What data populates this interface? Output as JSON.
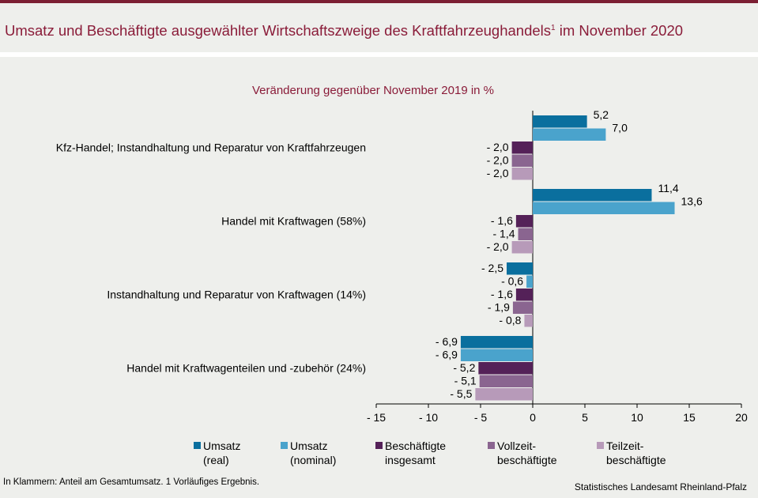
{
  "header": {
    "title": "Umsatz und Beschäftigte ausgewählter Wirtschaftszweige des Kraftfahrzeughandels",
    "title_sup": "1",
    "title_suffix": " im November 2020"
  },
  "chart_data": {
    "type": "bar",
    "orientation": "horizontal",
    "title": "Veränderung gegenüber November 2019 in %",
    "categories": [
      "Kfz-Handel; Instandhaltung und Reparatur von Kraftfahrzeugen",
      "Handel mit Kraftwagen (58%)",
      "Instandhaltung und Reparatur von Kraftwagen (14%)",
      "Handel mit Kraftwagenteilen und -zubehör (24%)"
    ],
    "series": [
      {
        "name": "Umsatz (real)",
        "legend_lines": [
          "Umsatz",
          "(real)"
        ],
        "color": "#0a6f9e",
        "values": [
          5.2,
          11.4,
          -2.5,
          -6.9
        ],
        "labels": [
          "5,2",
          "11,4",
          "- 2,5",
          "- 6,9"
        ]
      },
      {
        "name": "Umsatz (nominal)",
        "legend_lines": [
          "Umsatz",
          "(nominal)"
        ],
        "color": "#4aa3cc",
        "values": [
          7.0,
          13.6,
          -0.6,
          -6.9
        ],
        "labels": [
          "7,0",
          "13,6",
          "- 0,6",
          "- 6,9"
        ]
      },
      {
        "name": "Beschäftigte insgesamt",
        "legend_lines": [
          "Beschäftigte",
          "insgesamt"
        ],
        "color": "#542158",
        "values": [
          -2.0,
          -1.6,
          -1.6,
          -5.2
        ],
        "labels": [
          "- 2,0",
          "- 1,6",
          "- 1,6",
          "- 5,2"
        ]
      },
      {
        "name": "Vollzeitbeschäftigte",
        "legend_lines": [
          "Vollzeit-",
          "beschäftigte"
        ],
        "color": "#8a6590",
        "values": [
          -2.0,
          -1.4,
          -1.9,
          -5.1
        ],
        "labels": [
          "- 2,0",
          "- 1,4",
          "- 1,9",
          "- 5,1"
        ]
      },
      {
        "name": "Teilzeitbeschäftigte",
        "legend_lines": [
          "Teilzeit-",
          "beschäftigte"
        ],
        "color": "#b79ab9",
        "values": [
          -2.0,
          -2.0,
          -0.8,
          -5.5
        ],
        "labels": [
          "- 2,0",
          "- 2,0",
          "- 0,8",
          "- 5,5"
        ]
      }
    ],
    "xlim": [
      -15,
      20
    ],
    "xticks": [
      -15,
      -10,
      -5,
      0,
      5,
      10,
      15,
      20
    ],
    "xtick_labels": [
      "- 15",
      "- 10",
      "- 5",
      "0",
      "5",
      "10",
      "15",
      "20"
    ],
    "grid": false,
    "legend_position": "bottom"
  },
  "footer": {
    "footnote": "In Klammern:  Anteil am Gesamtumsatz.  1 Vorläufiges  Ergebnis.",
    "source": "Statistisches Landesamt Rheinland-Pfalz"
  }
}
